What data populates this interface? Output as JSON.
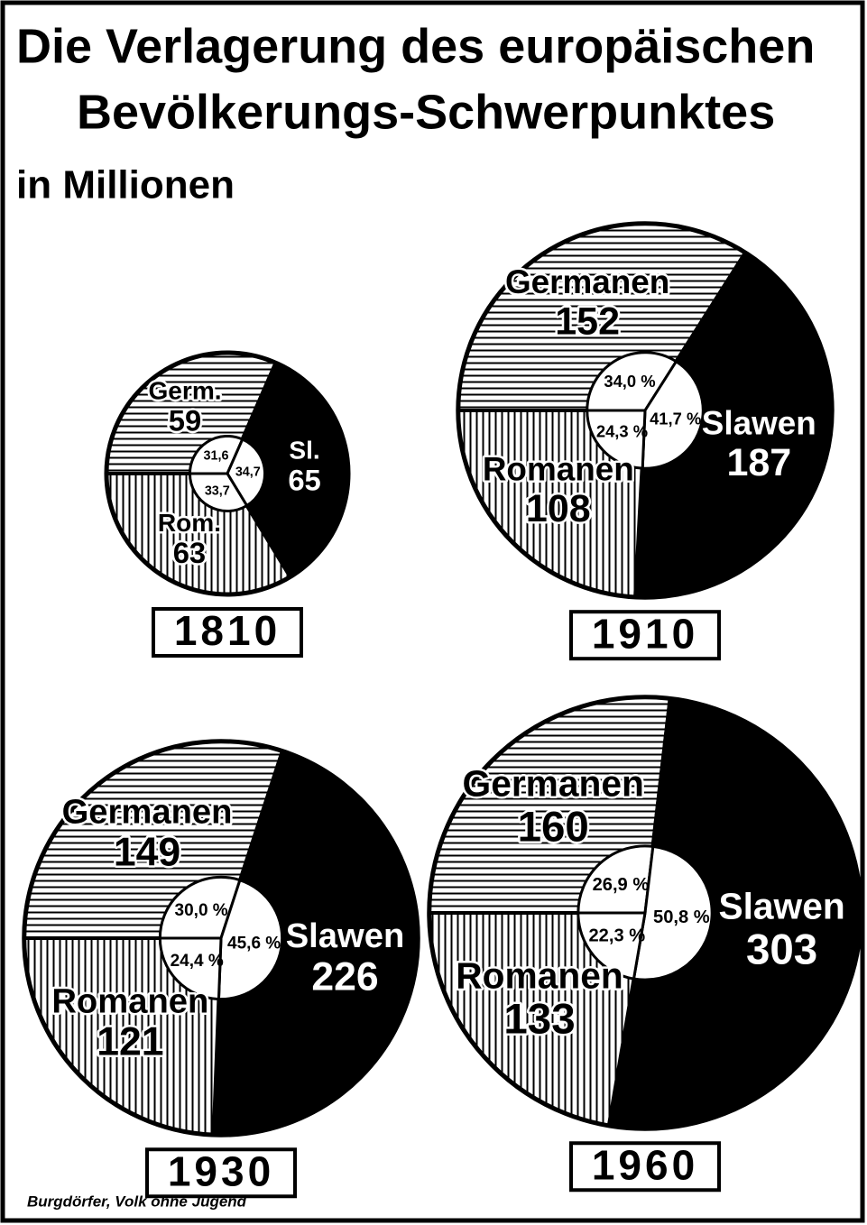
{
  "title_lines": [
    "Die Verlagerung des europäischen",
    "Bevölkerungs-Schwerpunktes"
  ],
  "subtitle": "in Millionen",
  "source": "Burgdörfer, Volk ohne Jugend",
  "patterns": [
    "horizontal",
    "solid",
    "vertical"
  ],
  "chart_data": [
    {
      "type": "pie",
      "title": "1810",
      "categories": [
        "Germ.",
        "Sl.",
        "Rom."
      ],
      "values": [
        59,
        65,
        63
      ],
      "shares": [
        31.6,
        34.7,
        33.7
      ],
      "share_labels": [
        "31,6",
        "34,7",
        "33,7"
      ]
    },
    {
      "type": "pie",
      "title": "1910",
      "categories": [
        "Germanen",
        "Slawen",
        "Romanen"
      ],
      "values": [
        152,
        187,
        108
      ],
      "shares": [
        34.0,
        41.7,
        24.3
      ],
      "share_labels": [
        "34,0 %",
        "41,7 %",
        "24,3 %"
      ]
    },
    {
      "type": "pie",
      "title": "1930",
      "categories": [
        "Germanen",
        "Slawen",
        "Romanen"
      ],
      "values": [
        149,
        226,
        121
      ],
      "shares": [
        30.0,
        45.6,
        24.4
      ],
      "share_labels": [
        "30,0 %",
        "45,6 %",
        "24,4 %"
      ]
    },
    {
      "type": "pie",
      "title": "1960",
      "categories": [
        "Germanen",
        "Slawen",
        "Romanen"
      ],
      "values": [
        160,
        303,
        133
      ],
      "shares": [
        26.9,
        50.8,
        22.3
      ],
      "share_labels": [
        "26,9 %",
        "50,8 %",
        "22,3 %"
      ]
    }
  ]
}
